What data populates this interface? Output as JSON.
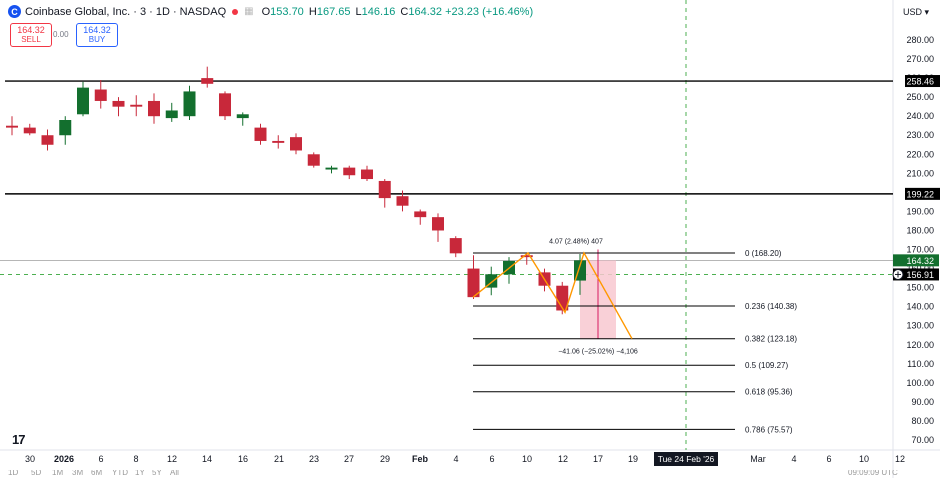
{
  "header": {
    "symbol_title": "Coinbase Global, Inc. · 3 · 1D · NASDAQ",
    "open_label": "O",
    "open_value": "153.70",
    "high_label": "H",
    "high_value": "167.65",
    "low_label": "L",
    "low_value": "146.16",
    "close_label": "C",
    "close_value": "164.32",
    "change": "+23.23 (+16.46%)",
    "currency": "USD"
  },
  "trade_panel": {
    "sell_price": "164.32",
    "sell_label": "SELL",
    "spread": "0.00",
    "buy_price": "164.32",
    "buy_label": "BUY"
  },
  "colors": {
    "up": "#136f2e",
    "down": "#c8283a",
    "fib": "#000000",
    "current_price_tag": "#136f2e",
    "crosshair_tag": "#000000",
    "projection": "#ff9800",
    "measure_fill": "#f8c8d0"
  },
  "icons": {
    "logo": "coinbase-logo-icon",
    "tradingview": "tradingview-logo-icon",
    "crosshair": "plus-circle-icon"
  },
  "chart_data": {
    "type": "candlestick",
    "y_ticks": [
      280,
      270,
      260,
      250,
      240,
      230,
      220,
      210,
      200,
      190,
      180,
      170,
      160,
      150,
      140,
      130,
      120,
      110,
      100,
      90,
      80,
      70
    ],
    "ylim": [
      65,
      288
    ],
    "x_ticks": [
      "30",
      "2026",
      "6",
      "8",
      "12",
      "14",
      "16",
      "21",
      "23",
      "27",
      "29",
      "Feb",
      "4",
      "6",
      "10",
      "12",
      "17",
      "19",
      "Mar",
      "4",
      "6",
      "10",
      "12"
    ],
    "crosshair_date_label": "Tue 24 Feb '26",
    "candles": [
      {
        "o": 235,
        "h": 240,
        "l": 230,
        "c": 234
      },
      {
        "o": 234,
        "h": 236,
        "l": 230,
        "c": 231
      },
      {
        "o": 230,
        "h": 233,
        "l": 222,
        "c": 225
      },
      {
        "o": 230,
        "h": 240,
        "l": 225,
        "c": 238
      },
      {
        "o": 241,
        "h": 258,
        "l": 240,
        "c": 255
      },
      {
        "o": 254,
        "h": 259,
        "l": 244,
        "c": 248
      },
      {
        "o": 248,
        "h": 250,
        "l": 240,
        "c": 245
      },
      {
        "o": 246,
        "h": 251,
        "l": 240,
        "c": 245
      },
      {
        "o": 248,
        "h": 252,
        "l": 236,
        "c": 240
      },
      {
        "o": 239,
        "h": 247,
        "l": 237,
        "c": 243
      },
      {
        "o": 240,
        "h": 256,
        "l": 238,
        "c": 253
      },
      {
        "o": 260,
        "h": 266,
        "l": 255,
        "c": 257
      },
      {
        "o": 252,
        "h": 253,
        "l": 238,
        "c": 240
      },
      {
        "o": 239,
        "h": 242,
        "l": 235,
        "c": 241
      },
      {
        "o": 234,
        "h": 236,
        "l": 225,
        "c": 227
      },
      {
        "o": 227,
        "h": 230,
        "l": 223,
        "c": 226
      },
      {
        "o": 229,
        "h": 231,
        "l": 220,
        "c": 222
      },
      {
        "o": 220,
        "h": 221,
        "l": 213,
        "c": 214
      },
      {
        "o": 212,
        "h": 214,
        "l": 210,
        "c": 213
      },
      {
        "o": 213,
        "h": 214,
        "l": 207,
        "c": 209
      },
      {
        "o": 212,
        "h": 214,
        "l": 206,
        "c": 207
      },
      {
        "o": 206,
        "h": 207,
        "l": 192,
        "c": 197
      },
      {
        "o": 198,
        "h": 201,
        "l": 190,
        "c": 193
      },
      {
        "o": 190,
        "h": 191,
        "l": 183,
        "c": 187
      },
      {
        "o": 187,
        "h": 189,
        "l": 174,
        "c": 180
      },
      {
        "o": 176,
        "h": 177,
        "l": 166,
        "c": 168
      },
      {
        "o": 160,
        "h": 167,
        "l": 144,
        "c": 145
      },
      {
        "o": 150,
        "h": 161,
        "l": 146,
        "c": 157
      },
      {
        "o": 157,
        "h": 166,
        "l": 152,
        "c": 164
      },
      {
        "o": 167,
        "h": 168,
        "l": 162,
        "c": 166
      },
      {
        "o": 158,
        "h": 160,
        "l": 148,
        "c": 151
      },
      {
        "o": 151,
        "h": 153,
        "l": 136,
        "c": 138
      },
      {
        "o": 153.7,
        "h": 167.65,
        "l": 146.16,
        "c": 164.32
      }
    ],
    "horizontal_levels": [
      {
        "price": 258.46,
        "label": "258.46"
      },
      {
        "price": 199.22,
        "label": "199.22"
      }
    ],
    "price_tags": [
      {
        "price": 164.32,
        "label": "164.32",
        "kind": "current"
      },
      {
        "price": 156.91,
        "label": "156.91",
        "kind": "crosshair"
      }
    ],
    "fib_levels": [
      {
        "label": "0 (168.20)",
        "price": 168.2
      },
      {
        "label": "0.236 (140.38)",
        "price": 140.38
      },
      {
        "label": "0.382 (123.18)",
        "price": 123.18
      },
      {
        "label": "0.5 (109.27)",
        "price": 109.27
      },
      {
        "label": "0.618 (95.36)",
        "price": 95.36
      },
      {
        "label": "0.786 (75.57)",
        "price": 75.57
      }
    ],
    "measure_top_label": "4.07 (2.48%) 407",
    "measure_bottom_label": "−41.06 (−25.02%) −4,106",
    "measure_range": [
      123.18,
      164.32
    ]
  },
  "bottom_toolbar": [
    "1D",
    "5D",
    "1M",
    "3M",
    "6M",
    "YTD",
    "1Y",
    "5Y",
    "All"
  ],
  "bottom_time": "09:09:09 UTC"
}
